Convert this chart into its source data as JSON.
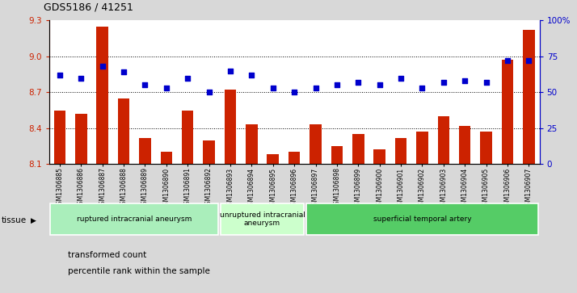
{
  "title": "GDS5186 / 41251",
  "samples": [
    "GSM1306885",
    "GSM1306886",
    "GSM1306887",
    "GSM1306888",
    "GSM1306889",
    "GSM1306890",
    "GSM1306891",
    "GSM1306892",
    "GSM1306893",
    "GSM1306894",
    "GSM1306895",
    "GSM1306896",
    "GSM1306897",
    "GSM1306898",
    "GSM1306899",
    "GSM1306900",
    "GSM1306901",
    "GSM1306902",
    "GSM1306903",
    "GSM1306904",
    "GSM1306905",
    "GSM1306906",
    "GSM1306907"
  ],
  "bar_values": [
    8.55,
    8.52,
    9.25,
    8.65,
    8.32,
    8.2,
    8.55,
    8.3,
    8.72,
    8.43,
    8.18,
    8.2,
    8.43,
    8.25,
    8.35,
    8.22,
    8.32,
    8.37,
    8.5,
    8.42,
    8.37,
    8.97,
    9.22
  ],
  "percentile_values": [
    62,
    60,
    68,
    64,
    55,
    53,
    60,
    50,
    65,
    62,
    53,
    50,
    53,
    55,
    57,
    55,
    60,
    53,
    57,
    58,
    57,
    72,
    72
  ],
  "ylim_left": [
    8.1,
    9.3
  ],
  "ylim_right": [
    0,
    100
  ],
  "bar_color": "#cc2200",
  "dot_color": "#0000cc",
  "background_color": "#d8d8d8",
  "plot_bg_color": "#ffffff",
  "groups": [
    {
      "label": "ruptured intracranial aneurysm",
      "start": 0,
      "end": 8,
      "color": "#aaeebb"
    },
    {
      "label": "unruptured intracranial\naneurysm",
      "start": 8,
      "end": 12,
      "color": "#ccffcc"
    },
    {
      "label": "superficial temporal artery",
      "start": 12,
      "end": 23,
      "color": "#55cc66"
    }
  ],
  "legend_items": [
    {
      "label": "transformed count",
      "color": "#cc2200"
    },
    {
      "label": "percentile rank within the sample",
      "color": "#0000cc"
    }
  ],
  "yticks_left": [
    8.1,
    8.4,
    8.7,
    9.0,
    9.3
  ],
  "yticks_right": [
    0,
    25,
    50,
    75,
    100
  ],
  "ytick_labels_right": [
    "0",
    "25",
    "50",
    "75",
    "100%"
  ],
  "dot_size": 25
}
